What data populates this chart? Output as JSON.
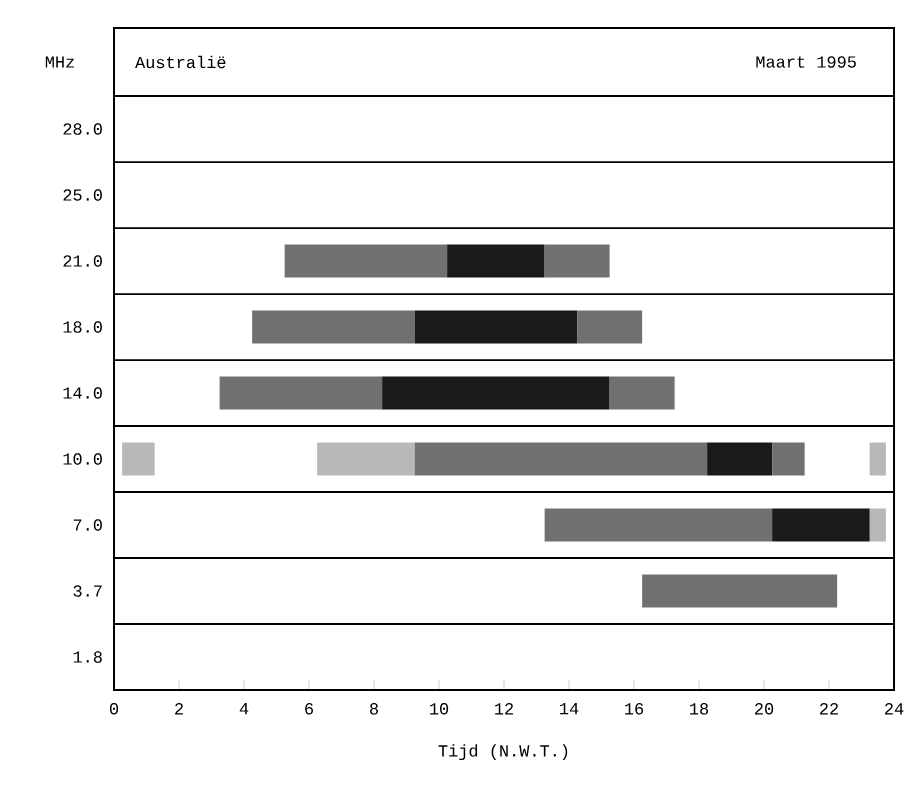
{
  "chart_data": {
    "type": "bar",
    "orientation": "horizontal",
    "title": "Australië",
    "subtitle": "Maart 1995",
    "ylabel": "MHz",
    "xlabel": "Tijd (N.W.T.)",
    "categories": [
      "28.0",
      "25.0",
      "21.0",
      "18.0",
      "14.0",
      "10.0",
      "7.0",
      "3.7",
      "1.8"
    ],
    "xlim": [
      0,
      24
    ],
    "xticks": [
      0,
      2,
      4,
      6,
      8,
      10,
      12,
      14,
      16,
      18,
      20,
      22,
      24
    ],
    "grid": "y",
    "series": [
      {
        "color": "#b8b8b8",
        "base": [
          null,
          null,
          null,
          null,
          null,
          0.25,
          null,
          null,
          null
        ],
        "values": [
          null,
          null,
          null,
          null,
          null,
          1,
          null,
          null,
          null
        ]
      },
      {
        "color": "#b8b8b8",
        "base": [
          null,
          null,
          null,
          null,
          null,
          6.25,
          23.25,
          null,
          null
        ],
        "values": [
          null,
          null,
          null,
          null,
          null,
          3,
          0.5,
          null,
          null
        ]
      },
      {
        "color": "#b8b8b8",
        "base": [
          null,
          null,
          null,
          null,
          null,
          23.25,
          null,
          null,
          null
        ],
        "values": [
          null,
          null,
          null,
          null,
          null,
          0.5,
          null,
          null,
          null
        ]
      },
      {
        "color": "#707070",
        "base": [
          null,
          null,
          5.25,
          4.25,
          3.25,
          9.25,
          13.25,
          16.25,
          null
        ],
        "values": [
          null,
          null,
          5,
          5,
          5,
          9,
          7,
          6,
          null
        ]
      },
      {
        "color": "#1a1a1a",
        "base": [
          null,
          null,
          10.25,
          9.25,
          8.25,
          18.25,
          20.25,
          null,
          null
        ],
        "values": [
          null,
          null,
          3,
          5,
          7,
          2,
          3,
          null,
          null
        ]
      },
      {
        "color": "#707070",
        "base": [
          null,
          null,
          13.25,
          14.25,
          15.25,
          20.25,
          null,
          null,
          null
        ],
        "values": [
          null,
          null,
          2,
          2,
          2,
          1,
          null,
          null,
          null
        ]
      }
    ]
  }
}
